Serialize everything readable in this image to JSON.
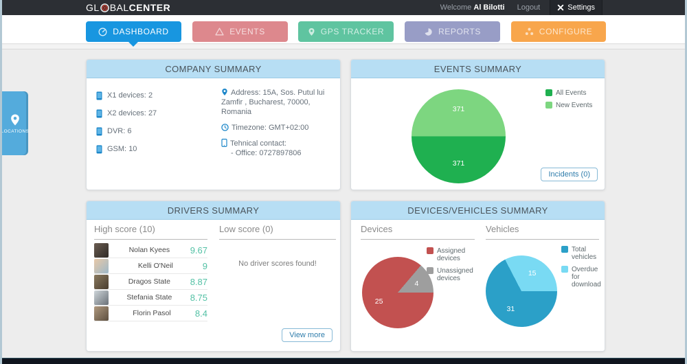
{
  "header": {
    "logo": {
      "part1": "GL",
      "part2": "BAL",
      "part3": "CENTER",
      "icon": "target-logo-icon"
    },
    "welcome_label": "Welcome",
    "username": "Al Bilotti",
    "logout_label": "Logout",
    "settings_label": "Settings",
    "settings_icon": "crossed-tools-icon"
  },
  "nav": {
    "items": [
      {
        "label": "DASHBOARD",
        "icon": "gauge-icon",
        "color": "#1896e0",
        "active": true
      },
      {
        "label": "EVENTS",
        "icon": "warning-triangle-icon",
        "color": "#dd888d",
        "active": false
      },
      {
        "label": "GPS TRACKER",
        "icon": "map-pin-icon",
        "color": "#5fc4a0",
        "active": false
      },
      {
        "label": "REPORTS",
        "icon": "pie-chart-icon",
        "color": "#989dc6",
        "active": false
      },
      {
        "label": "CONFIGURE",
        "icon": "nodes-icon",
        "color": "#f8a64c",
        "active": false
      }
    ]
  },
  "locations_tab": {
    "label": "LOCATIONS",
    "icon": "map-pin-icon",
    "color": "#54abdc"
  },
  "company": {
    "title": "COMPANY SUMMARY",
    "items": [
      {
        "icon": "mobile-device-icon",
        "label": "X1 devices:",
        "value": "2"
      },
      {
        "icon": "mobile-device-icon",
        "label": "X2 devices:",
        "value": "27"
      },
      {
        "icon": "mobile-device-icon",
        "label": "DVR:",
        "value": "6"
      },
      {
        "icon": "mobile-device-icon",
        "label": "GSM:",
        "value": "10"
      }
    ],
    "address": {
      "icon": "map-pin-icon",
      "text": "Address: 15A, Sos. Putul lui Zamfir , Bucharest, 70000, Romania"
    },
    "timezone": {
      "icon": "clock-icon",
      "text": "Timezone: GMT+02:00"
    },
    "contact": {
      "icon": "phone-icon",
      "line1": "Tehnical contact:",
      "line2": "- Office: 0727897806"
    }
  },
  "events": {
    "title": "EVENTS SUMMARY",
    "incidents_button": "Incidents (0)"
  },
  "drivers": {
    "title": "DRIVERS SUMMARY",
    "high_score_label": "High score (10)",
    "low_score_label": "Low score (0)",
    "list": [
      {
        "name": "Nolan Kyees",
        "score": "9.67"
      },
      {
        "name": "Kelli O'Neil",
        "score": "9"
      },
      {
        "name": "Dragos State",
        "score": "8.87"
      },
      {
        "name": "Stefania State",
        "score": "8.75"
      },
      {
        "name": "Florin Pasol",
        "score": "8.4"
      }
    ],
    "empty_message": "No driver scores found!",
    "view_more_button": "View more"
  },
  "devices_vehicles": {
    "title": "DEVICES/VEHICLES SUMMARY",
    "devices_label": "Devices",
    "vehicles_label": "Vehicles"
  },
  "chart_data": [
    {
      "type": "pie",
      "title": "Events Summary",
      "legend_position": "right",
      "start_angle": 90,
      "slices": [
        {
          "label": "All Events",
          "value": 371,
          "color": "#1fb050"
        },
        {
          "label": "New Events",
          "value": 371,
          "color": "#7dd680"
        }
      ]
    },
    {
      "type": "pie",
      "title": "Devices",
      "legend_position": "right",
      "start_angle": 90,
      "slices": [
        {
          "label": "Assigned devices",
          "value": 25,
          "color": "#c25150"
        },
        {
          "label": "Unassigned devices",
          "value": 4,
          "color": "#9e9e9e"
        }
      ]
    },
    {
      "type": "pie",
      "title": "Vehicles",
      "legend_position": "right",
      "start_angle": 90,
      "slices": [
        {
          "label": "Total vehicles",
          "value": 31,
          "color": "#2ba0c8"
        },
        {
          "label": "Overdue for download",
          "value": 15,
          "color": "#79daf3"
        }
      ]
    }
  ]
}
